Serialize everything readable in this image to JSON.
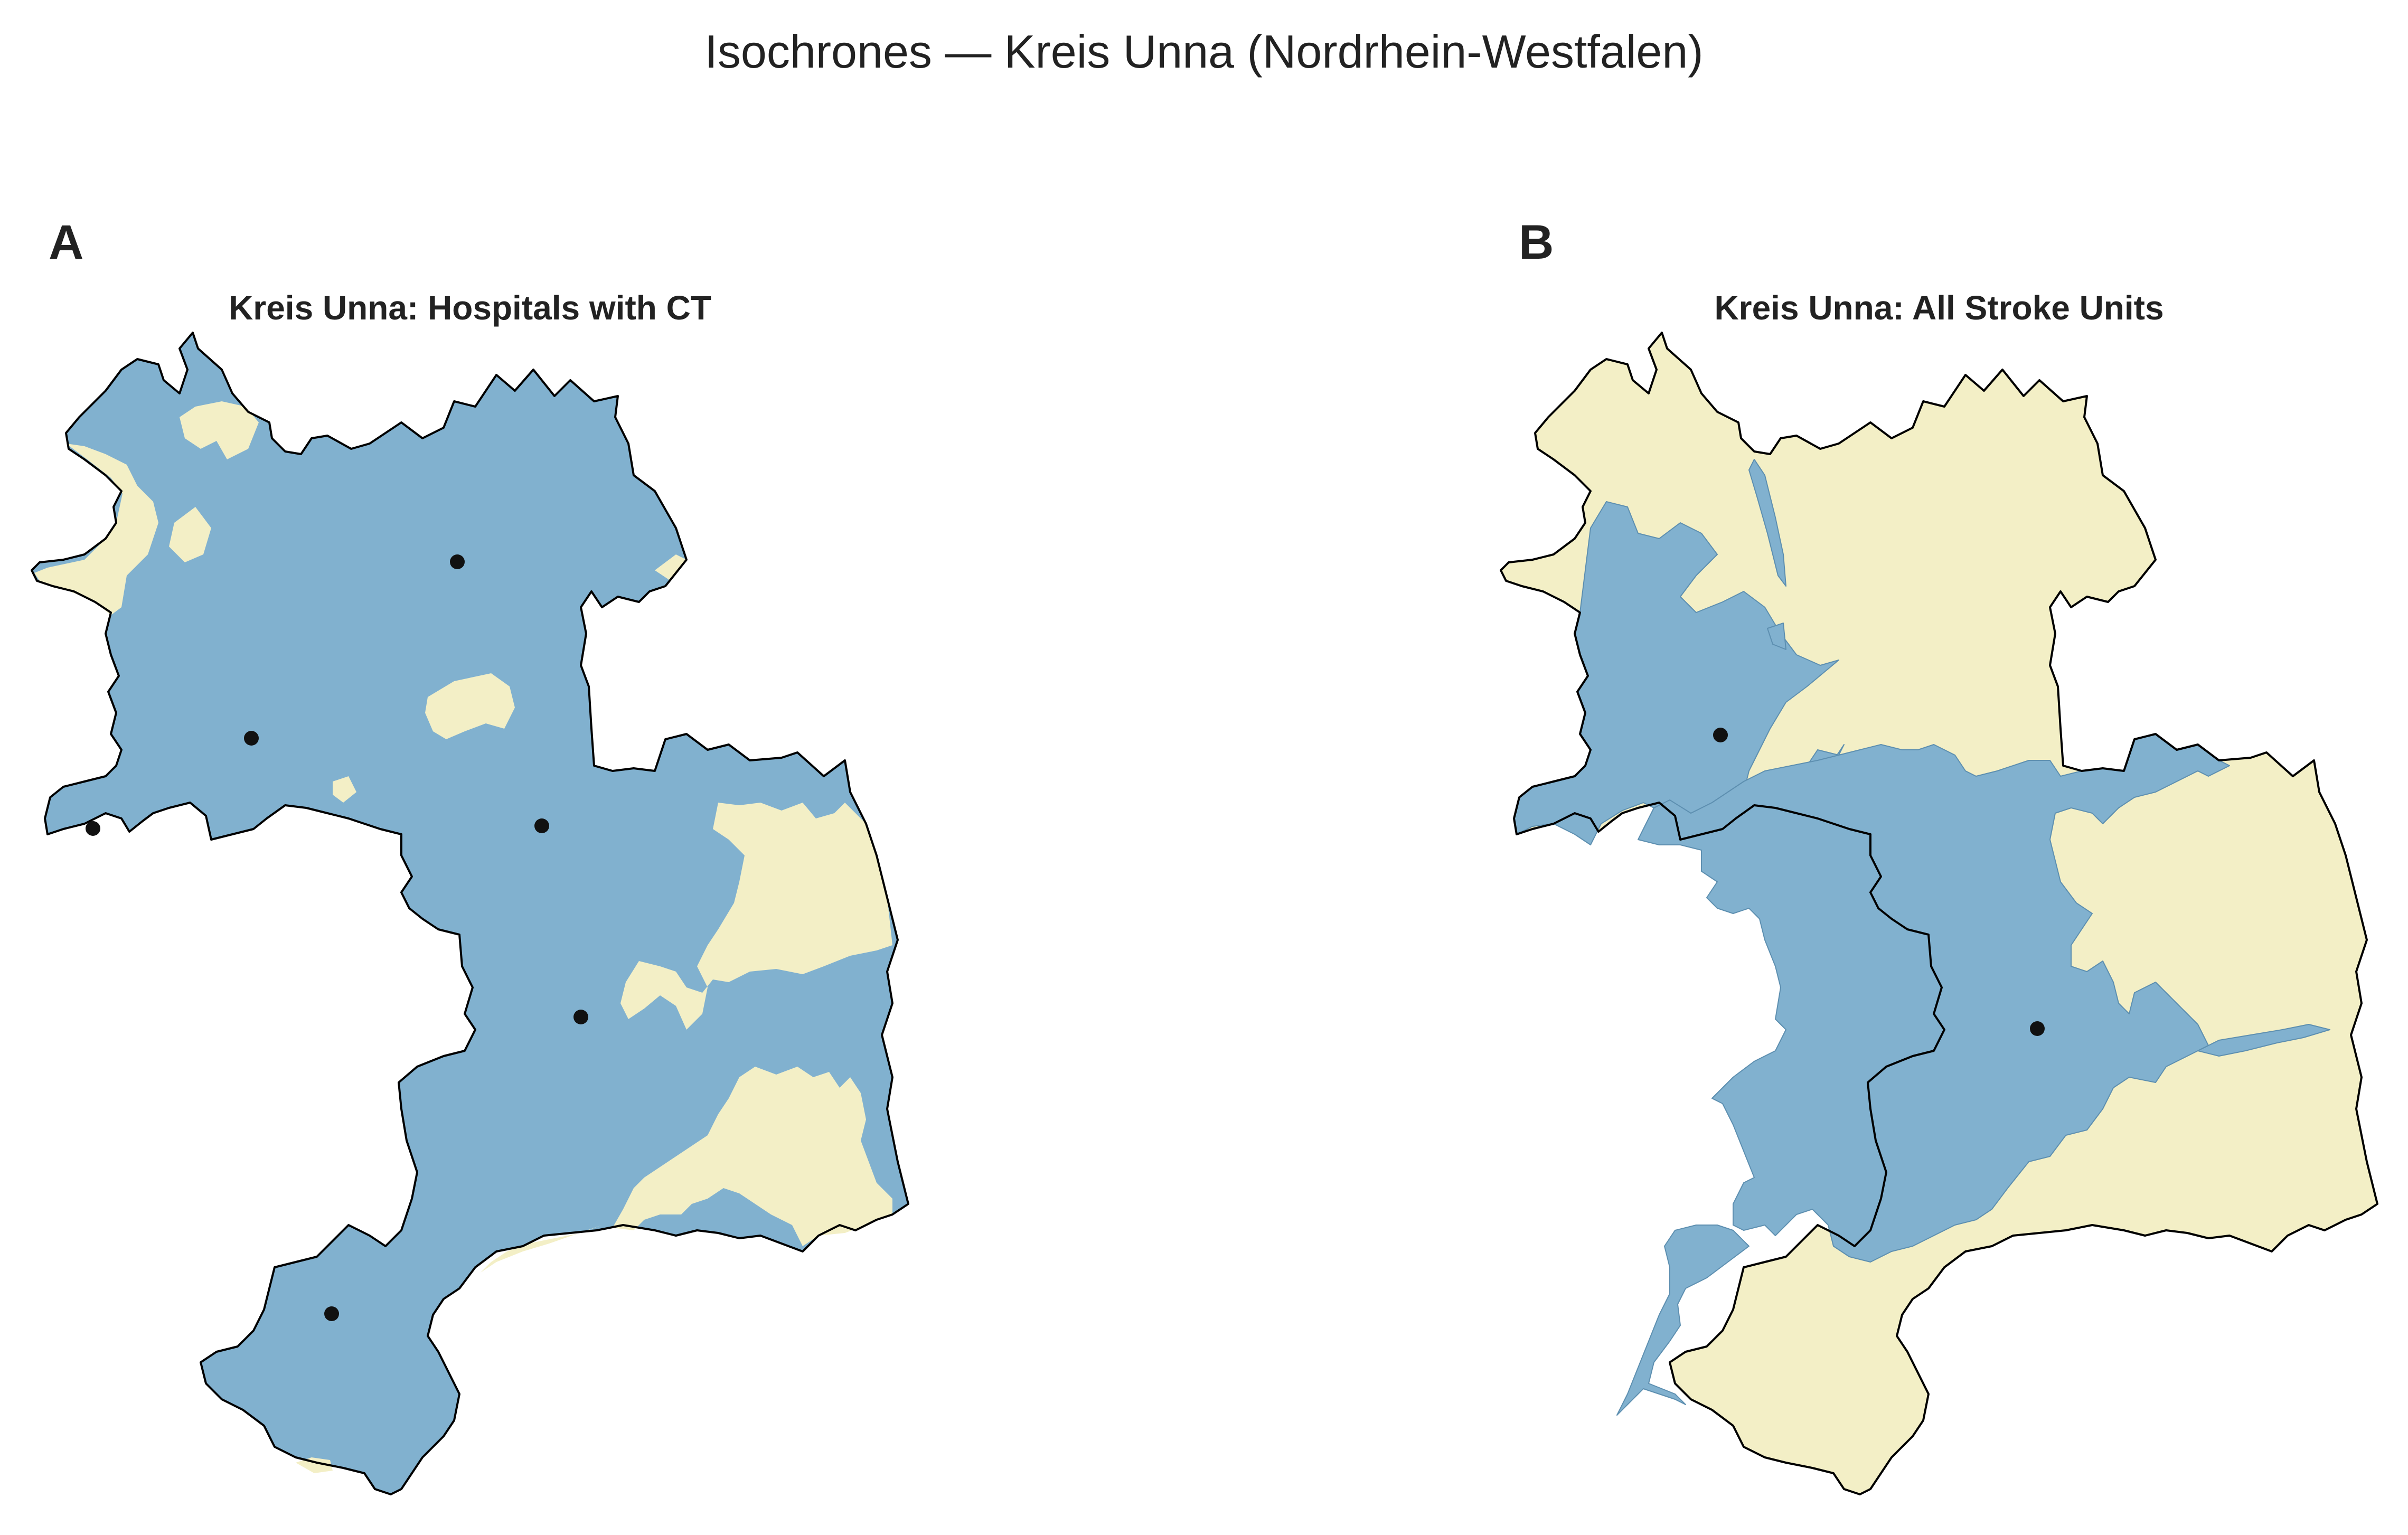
{
  "figure": {
    "title": "Isochrones — Kreis Unna (Nordrhein-Westfalen)"
  },
  "colors": {
    "reachable": "#81b1cf",
    "not_reachable": "#f3efc6",
    "boundary": "#000000",
    "site_marker": "#111111",
    "text": "#222222"
  },
  "panels": [
    {
      "letter": "A",
      "title": "Kreis Unna: Hospitals with CT",
      "site_count": 6,
      "coverage": "mostly reachable"
    },
    {
      "letter": "B",
      "title": "Kreis Unna: All Stroke Units",
      "site_count": 2,
      "coverage": "partly reachable"
    }
  ]
}
